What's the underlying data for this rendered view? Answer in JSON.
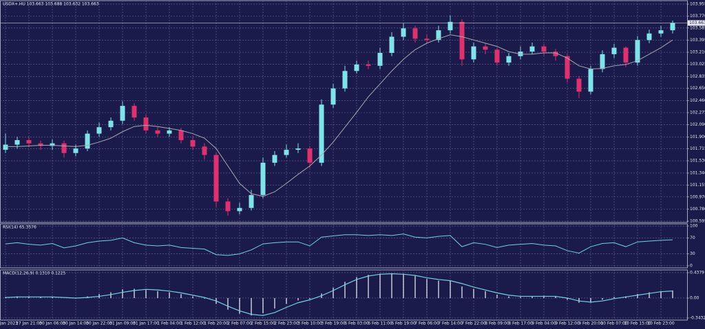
{
  "chart_data": [
    {
      "type": "candlestick",
      "title": "USDX+.HU 103.663 103.688 103.632 103.663",
      "categories": [
        "27 Jan 2023",
        null,
        "27 Jan 21:00",
        null,
        "30 Jan 06:00",
        null,
        "30 Jan 14:00",
        null,
        "30 Jan 22:00",
        null,
        "31 Jan 09:00",
        null,
        "31 Jan 17:00",
        null,
        "1 Feb 04:00",
        null,
        "1 Feb 12:00",
        null,
        "1 Feb 20:00",
        null,
        "2 Feb 07:00",
        null,
        "2 Feb 15:00",
        null,
        "2 Feb 23:00",
        null,
        "3 Feb 10:00",
        null,
        "3 Feb 19:00",
        null,
        "6 Feb 03:00",
        null,
        "6 Feb 11:00",
        null,
        "6 Feb 19:00",
        null,
        "7 Feb 06:00",
        null,
        "7 Feb 14:00",
        null,
        "7 Feb 22:00",
        null,
        "8 Feb 09:00",
        null,
        "8 Feb 17:00",
        null,
        "9 Feb 04:00",
        null,
        "9 Feb 12:00",
        null,
        "9 Feb 20:00",
        null,
        "10 Feb 07:00",
        null,
        "10 Feb 15:00",
        null,
        "10 Feb 23:00",
        null
      ],
      "open": [
        101.7,
        101.78,
        101.85,
        101.8,
        101.76,
        101.8,
        101.65,
        101.72,
        101.95,
        102.05,
        102.15,
        102.38,
        102.2,
        102.0,
        101.95,
        102.0,
        101.85,
        101.75,
        101.62,
        100.9,
        100.75,
        100.8,
        101.0,
        101.5,
        101.62,
        101.7,
        101.72,
        101.5,
        102.4,
        102.65,
        102.92,
        103.02,
        103.0,
        103.2,
        103.45,
        103.58,
        103.42,
        103.4,
        103.55,
        103.68,
        103.1,
        103.3,
        103.25,
        103.05,
        103.15,
        103.22,
        103.3,
        103.22,
        103.15,
        102.8,
        102.6,
        102.95,
        103.18,
        103.28,
        103.05,
        103.4,
        103.5,
        103.55
      ],
      "high": [
        101.95,
        101.9,
        101.9,
        101.84,
        101.86,
        101.84,
        101.78,
        102.0,
        102.12,
        102.2,
        102.45,
        102.42,
        102.24,
        102.05,
        102.05,
        102.04,
        101.9,
        101.8,
        101.65,
        100.95,
        100.88,
        101.08,
        101.58,
        101.68,
        101.78,
        101.8,
        101.76,
        102.48,
        102.72,
        103.0,
        103.08,
        103.08,
        103.28,
        103.52,
        103.66,
        103.62,
        103.48,
        103.62,
        103.78,
        103.72,
        103.36,
        103.34,
        103.28,
        103.2,
        103.3,
        103.36,
        103.34,
        103.26,
        103.18,
        102.84,
        103.0,
        103.24,
        103.34,
        103.3,
        103.46,
        103.56,
        103.62,
        103.7
      ],
      "low": [
        101.65,
        101.72,
        101.74,
        101.7,
        101.7,
        101.58,
        101.6,
        101.68,
        101.9,
        102.0,
        102.1,
        102.15,
        101.95,
        101.9,
        101.9,
        101.8,
        101.7,
        101.55,
        100.82,
        100.68,
        100.7,
        100.76,
        100.95,
        101.45,
        101.58,
        101.65,
        101.42,
        101.45,
        102.35,
        102.6,
        102.88,
        102.95,
        102.95,
        103.15,
        103.4,
        103.36,
        103.34,
        103.36,
        103.5,
        103.0,
        103.05,
        103.18,
        103.0,
        103.0,
        103.1,
        103.18,
        103.16,
        103.08,
        102.74,
        102.5,
        102.56,
        102.9,
        103.12,
        102.98,
        103.0,
        103.35,
        103.45,
        103.5
      ],
      "close": [
        101.78,
        101.85,
        101.8,
        101.76,
        101.8,
        101.65,
        101.72,
        101.95,
        102.05,
        102.15,
        102.38,
        102.2,
        102.0,
        101.95,
        102.0,
        101.85,
        101.75,
        101.62,
        100.9,
        100.75,
        100.8,
        101.0,
        101.5,
        101.62,
        101.7,
        101.72,
        101.5,
        102.4,
        102.65,
        102.92,
        103.02,
        103.0,
        103.2,
        103.45,
        103.58,
        103.42,
        103.4,
        103.55,
        103.68,
        103.1,
        103.3,
        103.25,
        103.05,
        103.15,
        103.22,
        103.3,
        103.22,
        103.15,
        102.8,
        102.6,
        102.95,
        103.18,
        103.28,
        103.05,
        103.4,
        103.5,
        103.55,
        103.663
      ],
      "ma_values": [
        101.75,
        101.75,
        101.76,
        101.77,
        101.77,
        101.76,
        101.75,
        101.77,
        101.82,
        101.88,
        101.98,
        102.06,
        102.08,
        102.06,
        102.03,
        102.0,
        101.95,
        101.88,
        101.72,
        101.45,
        101.18,
        101.02,
        100.98,
        101.05,
        101.18,
        101.32,
        101.45,
        101.62,
        101.82,
        102.05,
        102.28,
        102.52,
        102.72,
        102.92,
        103.1,
        103.25,
        103.35,
        103.42,
        103.48,
        103.45,
        103.4,
        103.35,
        103.3,
        103.22,
        103.18,
        103.18,
        103.2,
        103.2,
        103.12,
        103.0,
        102.95,
        102.96,
        103.0,
        103.02,
        103.08,
        103.18,
        103.28,
        103.4
      ],
      "current_price": 103.663,
      "up_color": "#7fe3ea",
      "down_color": "#e0306e",
      "ma_color": "#a8a8b4",
      "ylim": [
        100.574,
        104.008
      ],
      "yticks": [
        103.955,
        {
          "value": 103.77,
          "label": "103.770"
        },
        103.585,
        103.395,
        {
          "value": 103.21,
          "label": "103.210"
        },
        103.025,
        102.835,
        {
          "value": 102.65,
          "label": "102.650"
        },
        {
          "value": 102.46,
          "label": "102.460"
        },
        102.275,
        {
          "value": 102.09,
          "label": "102.090"
        },
        {
          "value": 101.9,
          "label": "101.900"
        },
        101.715,
        {
          "value": 101.53,
          "label": "101.530"
        },
        {
          "value": 101.34,
          "label": "101.340"
        },
        101.155,
        {
          "value": 100.97,
          "label": "100.970"
        },
        {
          "value": 100.78,
          "label": "100.780"
        },
        100.595
      ],
      "grid": true
    },
    {
      "type": "line",
      "title": "RSI(14) 65.3576",
      "values": [
        55,
        58,
        54,
        52,
        56,
        45,
        50,
        58,
        62,
        64,
        70,
        58,
        52,
        50,
        52,
        46,
        44,
        42,
        28,
        26,
        30,
        40,
        55,
        58,
        60,
        60,
        50,
        72,
        75,
        78,
        78,
        76,
        78,
        76,
        80,
        72,
        70,
        74,
        76,
        48,
        58,
        54,
        46,
        52,
        54,
        56,
        52,
        50,
        38,
        32,
        48,
        56,
        58,
        48,
        60,
        62,
        64,
        65.3576
      ],
      "color": "#6fd3e3",
      "ylim": [
        -5.2,
        105.2
      ],
      "yticks": [
        100,
        70,
        30,
        0
      ],
      "grid": true
    },
    {
      "type": "macd",
      "title": "MACD(12,26,9) 0.1310 0.1225",
      "values": [
        0.02,
        0.03,
        0.03,
        0.02,
        0.02,
        0.0,
        -0.01,
        0.03,
        0.07,
        0.1,
        0.15,
        0.16,
        0.14,
        0.12,
        0.1,
        0.07,
        0.03,
        -0.01,
        -0.1,
        -0.2,
        -0.27,
        -0.3,
        -0.26,
        -0.18,
        -0.1,
        -0.04,
        -0.02,
        0.08,
        0.18,
        0.28,
        0.36,
        0.4,
        0.42,
        0.42,
        0.42,
        0.38,
        0.33,
        0.3,
        0.3,
        0.2,
        0.16,
        0.12,
        0.06,
        0.03,
        0.02,
        0.03,
        0.04,
        0.03,
        -0.03,
        -0.08,
        -0.08,
        -0.03,
        0.02,
        0.03,
        0.07,
        0.1,
        0.12,
        0.131
      ],
      "signal": [
        0.01,
        0.02,
        0.02,
        0.02,
        0.02,
        0.01,
        0.0,
        0.01,
        0.03,
        0.06,
        0.1,
        0.13,
        0.15,
        0.14,
        0.12,
        0.09,
        0.05,
        0.01,
        -0.05,
        -0.14,
        -0.22,
        -0.28,
        -0.3,
        -0.25,
        -0.16,
        -0.08,
        -0.03,
        0.04,
        0.13,
        0.23,
        0.32,
        0.38,
        0.41,
        0.42,
        0.41,
        0.39,
        0.35,
        0.32,
        0.3,
        0.25,
        0.19,
        0.14,
        0.09,
        0.05,
        0.03,
        0.03,
        0.03,
        0.03,
        0.0,
        -0.05,
        -0.07,
        -0.05,
        -0.01,
        0.02,
        0.05,
        0.08,
        0.11,
        0.1225
      ],
      "color": "#c8c8d8",
      "signal_color": "#6fd3e3",
      "ylim": [
        -0.379,
        0.485
      ],
      "yticks": [
        0.4379,
        {
          "value": 0,
          "label": "0.00"
        },
        -0.3432
      ],
      "grid": true
    }
  ]
}
